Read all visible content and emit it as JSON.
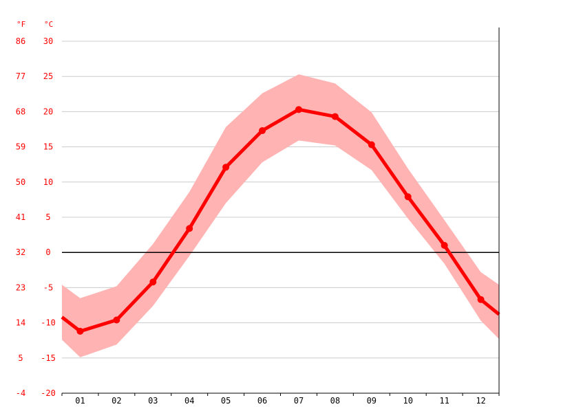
{
  "chart_data": {
    "type": "line",
    "units": {
      "fahrenheit": "°F",
      "celsius": "°C"
    },
    "x": [
      "01",
      "02",
      "03",
      "04",
      "05",
      "06",
      "07",
      "08",
      "09",
      "10",
      "11",
      "12"
    ],
    "y_ticks_celsius": [
      "30",
      "25",
      "20",
      "15",
      "10",
      "5",
      "0",
      "-5",
      "-10",
      "-15",
      "-20"
    ],
    "y_ticks_fahrenheit": [
      "86",
      "77",
      "68",
      "59",
      "50",
      "41",
      "32",
      "23",
      "14",
      "5",
      "-4"
    ],
    "ylim": [
      -20,
      30
    ],
    "grid": true,
    "zero_line": 0,
    "series": [
      {
        "values": [
          -11.2,
          -9.6,
          -4.2,
          3.4,
          12.1,
          17.3,
          20.3,
          19.3,
          15.3,
          7.9,
          1.0,
          -6.7
        ]
      }
    ],
    "band": {
      "upper": [
        -6.5,
        -4.8,
        1.2,
        8.6,
        17.8,
        22.6,
        25.3,
        24.0,
        19.9,
        11.9,
        4.6,
        -2.8
      ],
      "lower": [
        -14.9,
        -13.1,
        -7.6,
        -0.5,
        7.0,
        12.8,
        15.9,
        15.2,
        11.7,
        4.8,
        -1.6,
        -9.7
      ]
    },
    "edges": {
      "line": [
        -9.2,
        -8.8
      ],
      "upper": [
        -4.6,
        -4.6
      ],
      "lower": [
        -12.4,
        -12.3
      ]
    },
    "colors": {
      "line": "#ff0000",
      "band": "#ffb3b3",
      "grid": "#cccccc",
      "zero": "#000000",
      "axis": "#000000"
    }
  }
}
